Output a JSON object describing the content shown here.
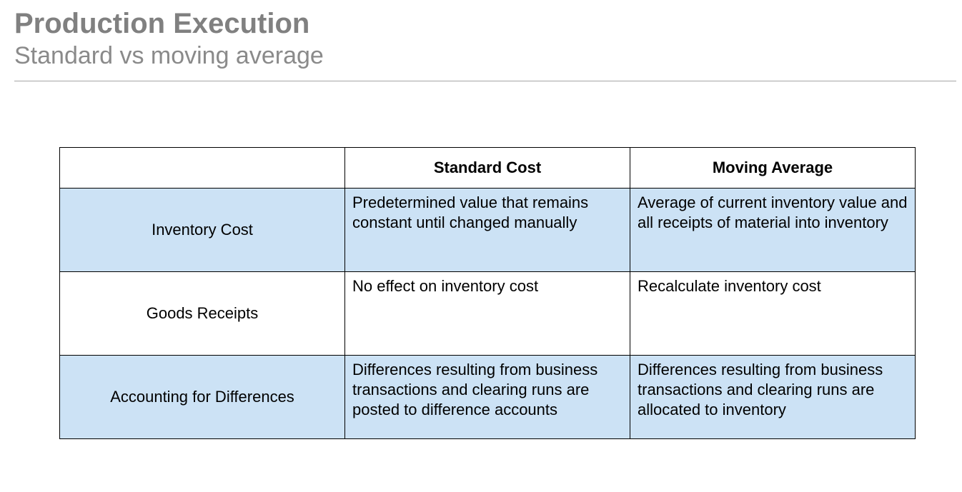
{
  "slide": {
    "title": "Production Execution",
    "subtitle": "Standard vs moving average"
  },
  "table": {
    "headers": [
      "",
      "Standard Cost",
      "Moving Average"
    ],
    "rows": [
      {
        "label": "Inventory Cost",
        "standard_cost": "Predetermined value that remains constant until changed manually",
        "moving_average": "Average of current inventory value and all receipts of material into inventory"
      },
      {
        "label": "Goods Receipts",
        "standard_cost": "No effect on inventory cost",
        "moving_average": "Recalculate inventory cost"
      },
      {
        "label": "Accounting for Differences",
        "standard_cost": "Differences resulting from business transactions and clearing runs are posted to difference accounts",
        "moving_average": "Differences resulting from business transactions and clearing runs are allocated to inventory"
      }
    ],
    "colors": {
      "shaded_row": "#cce2f5",
      "plain_row": "#ffffff",
      "border": "#000000"
    }
  }
}
